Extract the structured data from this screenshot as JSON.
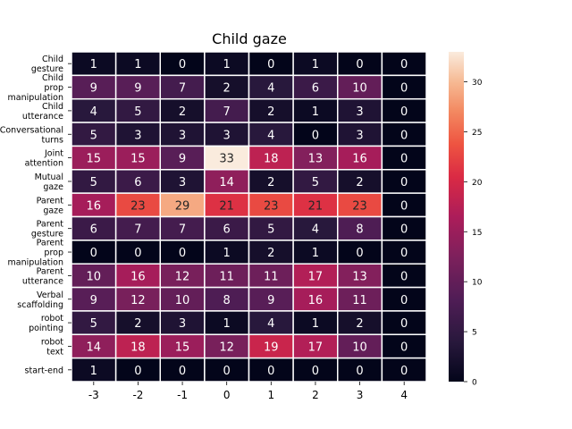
{
  "chart_data": {
    "type": "heatmap",
    "title": "Child gaze",
    "xlabel": "",
    "ylabel": "",
    "x_categories": [
      "-3",
      "-2",
      "-1",
      "0",
      "1",
      "2",
      "3",
      "4"
    ],
    "y_categories": [
      [
        "Child",
        "gesture"
      ],
      [
        "Child",
        "prop",
        "manipulation"
      ],
      [
        "Child",
        "utterance"
      ],
      [
        "Conversational",
        "turns"
      ],
      [
        "Joint",
        "attention"
      ],
      [
        "Mutual",
        "gaze"
      ],
      [
        "Parent",
        "gaze"
      ],
      [
        "Parent",
        "gesture"
      ],
      [
        "Parent",
        "prop",
        "manipulation"
      ],
      [
        "Parent",
        "utterance"
      ],
      [
        "Verbal",
        "scaffolding"
      ],
      [
        "robot",
        "pointing"
      ],
      [
        "robot",
        "text"
      ],
      [
        "start-end"
      ]
    ],
    "values": [
      [
        1,
        1,
        0,
        1,
        0,
        1,
        0,
        0
      ],
      [
        9,
        9,
        7,
        2,
        4,
        6,
        10,
        0
      ],
      [
        4,
        5,
        2,
        7,
        2,
        1,
        3,
        0
      ],
      [
        5,
        3,
        3,
        3,
        4,
        0,
        3,
        0
      ],
      [
        15,
        15,
        9,
        33,
        18,
        13,
        16,
        0
      ],
      [
        5,
        6,
        3,
        14,
        2,
        5,
        2,
        0
      ],
      [
        16,
        23,
        29,
        21,
        23,
        21,
        23,
        0
      ],
      [
        6,
        7,
        7,
        6,
        5,
        4,
        8,
        0
      ],
      [
        0,
        0,
        0,
        1,
        2,
        1,
        0,
        0
      ],
      [
        10,
        16,
        12,
        11,
        11,
        17,
        13,
        0
      ],
      [
        9,
        12,
        10,
        8,
        9,
        16,
        11,
        0
      ],
      [
        5,
        2,
        3,
        1,
        4,
        1,
        2,
        0
      ],
      [
        14,
        18,
        15,
        12,
        19,
        17,
        10,
        0
      ],
      [
        1,
        0,
        0,
        0,
        0,
        0,
        0,
        0
      ]
    ],
    "vmin": 0,
    "vmax": 33,
    "colormap": "rocket",
    "colorbar_ticks": [
      0,
      5,
      10,
      15,
      20,
      25,
      30
    ],
    "annotated": true,
    "cell_border_color": "#ffffff"
  }
}
